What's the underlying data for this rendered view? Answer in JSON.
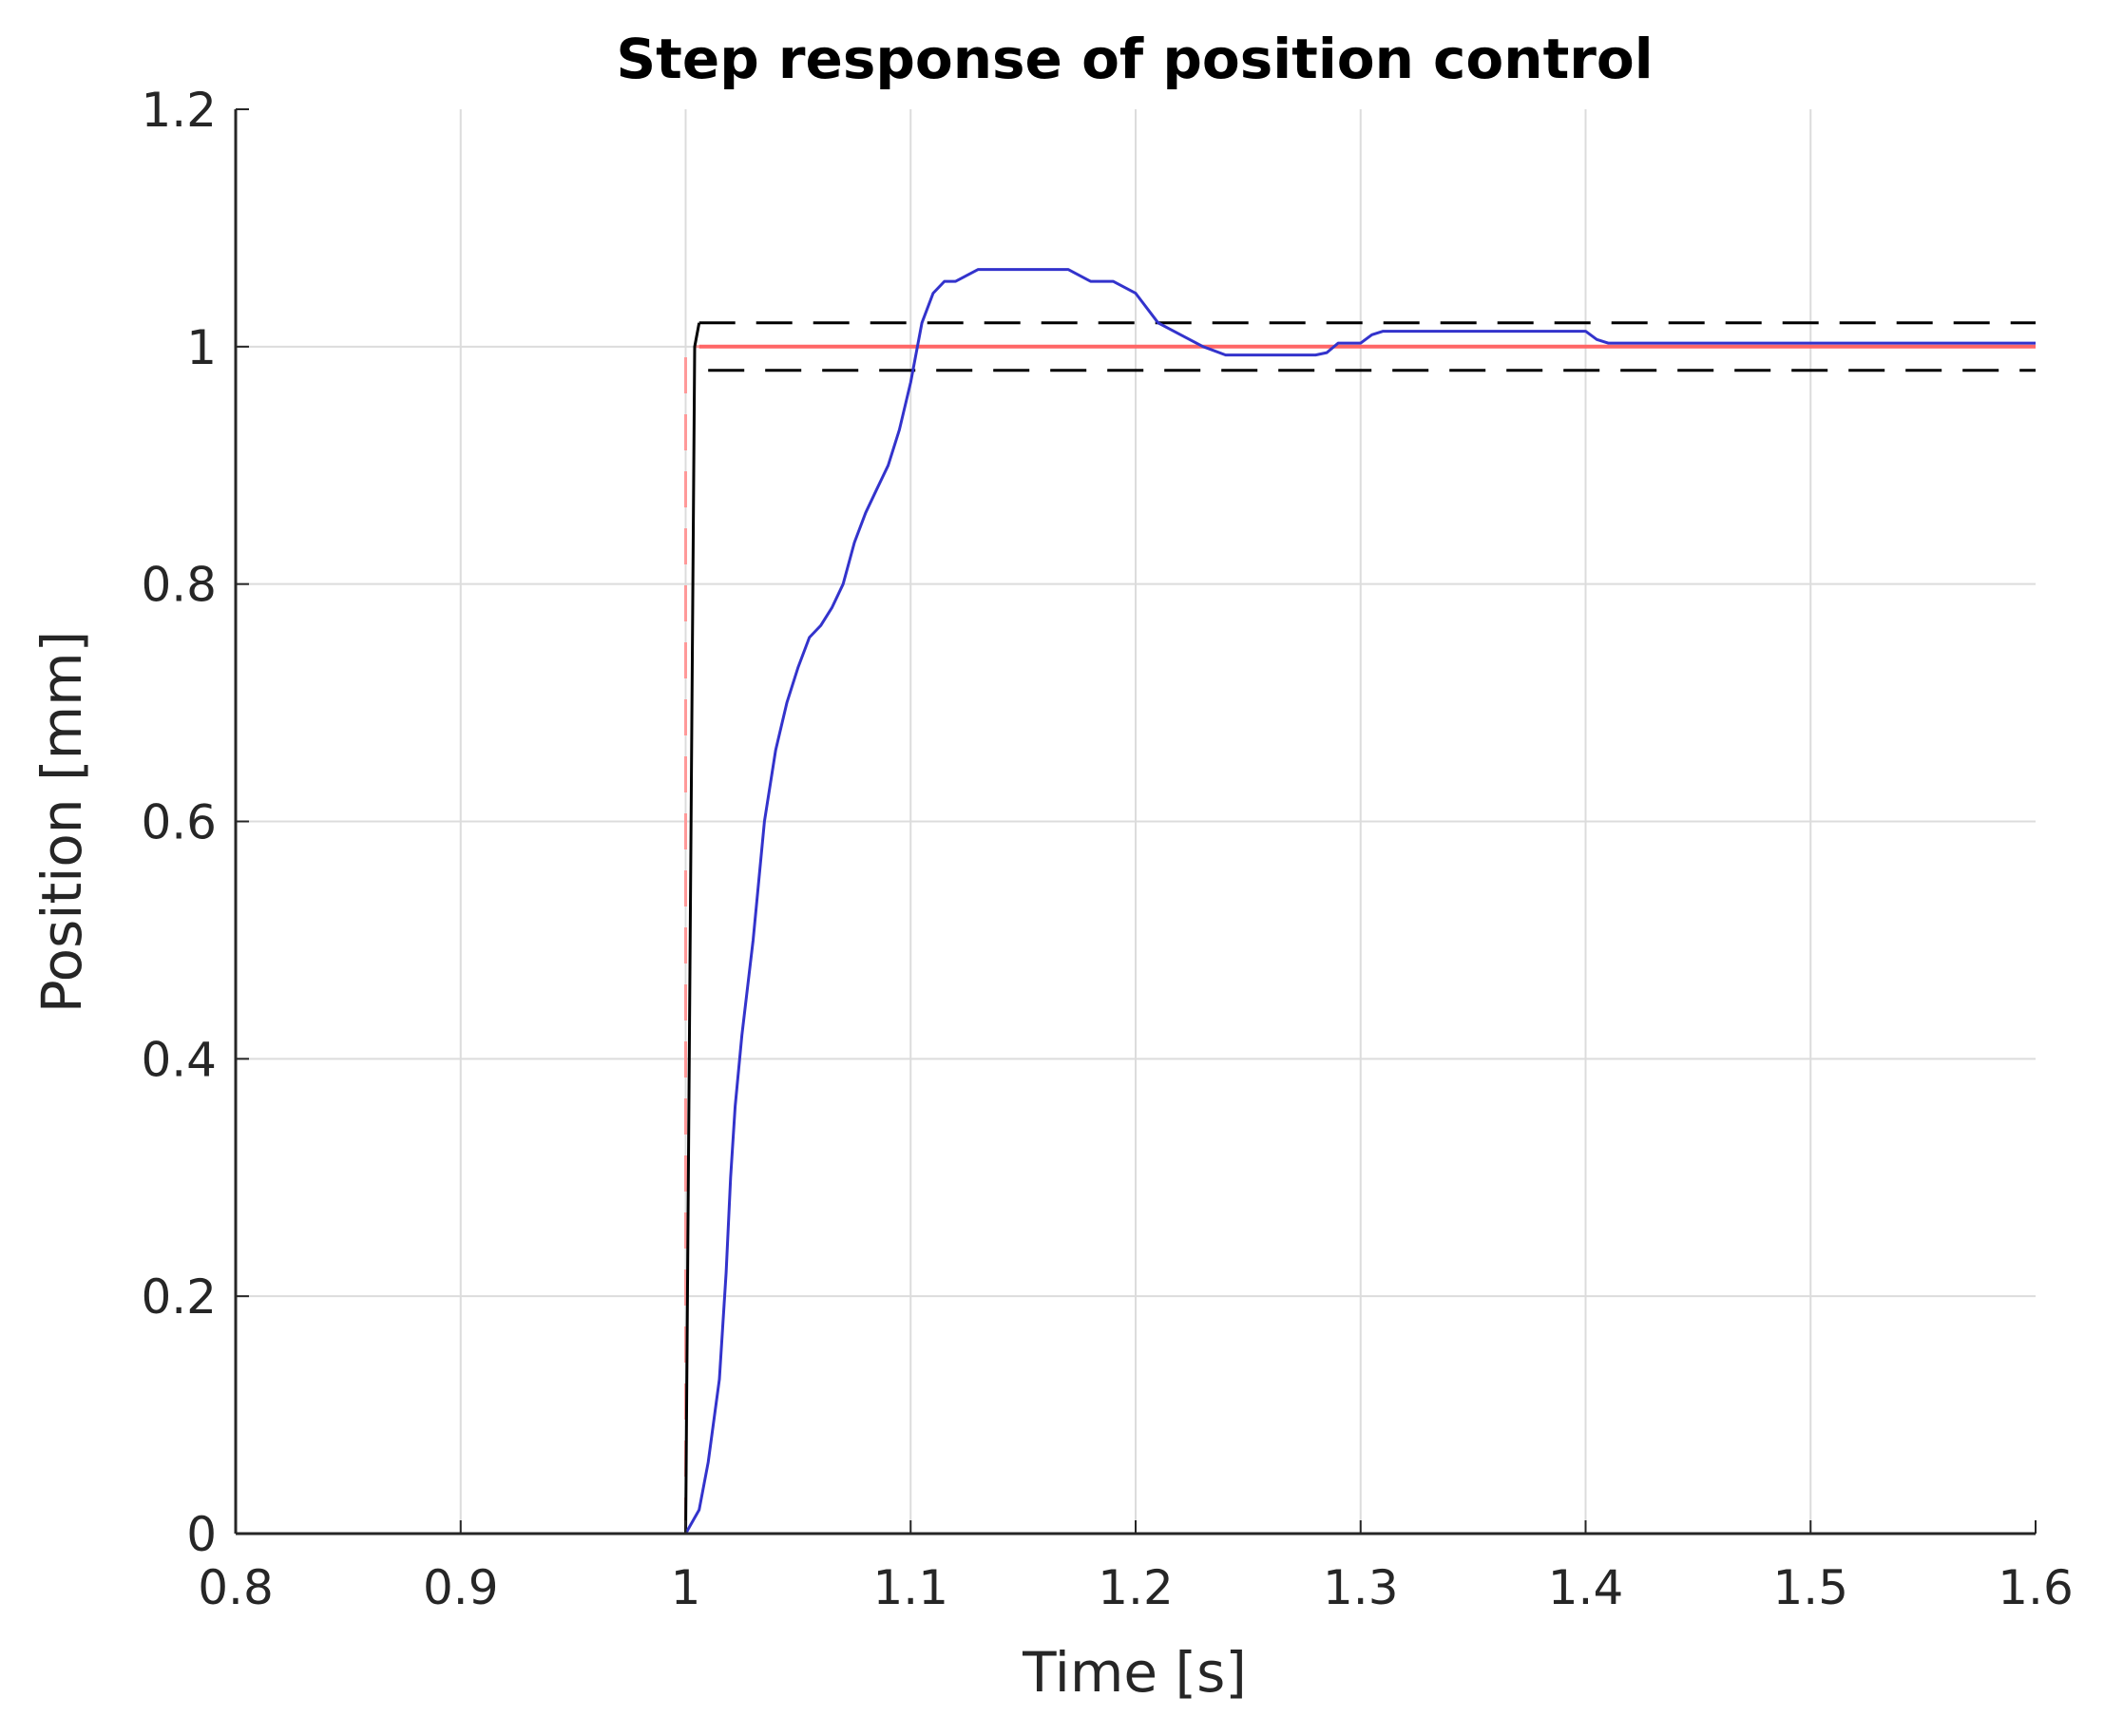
{
  "chart_data": {
    "type": "line",
    "title": "Step response of position control",
    "xlabel": "Time [s]",
    "ylabel": "Position [mm]",
    "xlim": [
      0.8,
      1.6
    ],
    "ylim": [
      0,
      1.2
    ],
    "grid": true,
    "xticks": [
      "0.8",
      "0.9",
      "1",
      "1.1",
      "1.2",
      "1.3",
      "1.4",
      "1.5",
      "1.6"
    ],
    "yticks": [
      "0",
      "0.2",
      "0.4",
      "0.6",
      "0.8",
      "1",
      "1.2"
    ],
    "series": [
      {
        "style": "solid",
        "color": "#3333cc",
        "x": [
          0.8,
          1.0,
          1.006,
          1.01,
          1.015,
          1.018,
          1.02,
          1.022,
          1.025,
          1.03,
          1.035,
          1.04,
          1.045,
          1.05,
          1.055,
          1.06,
          1.065,
          1.07,
          1.075,
          1.08,
          1.085,
          1.09,
          1.095,
          1.1,
          1.105,
          1.11,
          1.115,
          1.12,
          1.13,
          1.14,
          1.15,
          1.16,
          1.17,
          1.18,
          1.19,
          1.2,
          1.21,
          1.22,
          1.23,
          1.24,
          1.25,
          1.26,
          1.27,
          1.28,
          1.285,
          1.29,
          1.3,
          1.305,
          1.31,
          1.32,
          1.35,
          1.38,
          1.4,
          1.405,
          1.41,
          1.45,
          1.5,
          1.55,
          1.6
        ],
        "y": [
          0,
          0,
          0.02,
          0.06,
          0.13,
          0.22,
          0.3,
          0.36,
          0.42,
          0.5,
          0.6,
          0.66,
          0.7,
          0.73,
          0.755,
          0.765,
          0.78,
          0.8,
          0.835,
          0.86,
          0.88,
          0.9,
          0.93,
          0.97,
          1.02,
          1.045,
          1.055,
          1.055,
          1.065,
          1.065,
          1.065,
          1.065,
          1.065,
          1.055,
          1.055,
          1.045,
          1.02,
          1.01,
          1.0,
          0.993,
          0.993,
          0.993,
          0.993,
          0.993,
          0.995,
          1.003,
          1.003,
          1.01,
          1.013,
          1.013,
          1.013,
          1.013,
          1.013,
          1.006,
          1.003,
          1.003,
          1.003,
          1.003,
          1.003
        ]
      },
      {
        "style": "solid",
        "color": "#ff6666",
        "x": [
          1.006,
          1.6
        ],
        "y": [
          1.0,
          1.0
        ]
      },
      {
        "style": "dashed",
        "color": "#ff9999",
        "x": [
          1.0,
          1.0,
          1.006
        ],
        "y": [
          0,
          1.0,
          1.0
        ]
      },
      {
        "style": "solid",
        "color": "#000000",
        "x": [
          1.0,
          1.004,
          1.006
        ],
        "y": [
          0,
          1.0,
          1.02
        ]
      },
      {
        "style": "dashed",
        "color": "#000000",
        "x": [
          1.006,
          1.6
        ],
        "y": [
          1.02,
          1.02
        ]
      },
      {
        "style": "dashed",
        "color": "#000000",
        "x": [
          1.01,
          1.6
        ],
        "y": [
          0.98,
          0.98
        ]
      }
    ]
  }
}
